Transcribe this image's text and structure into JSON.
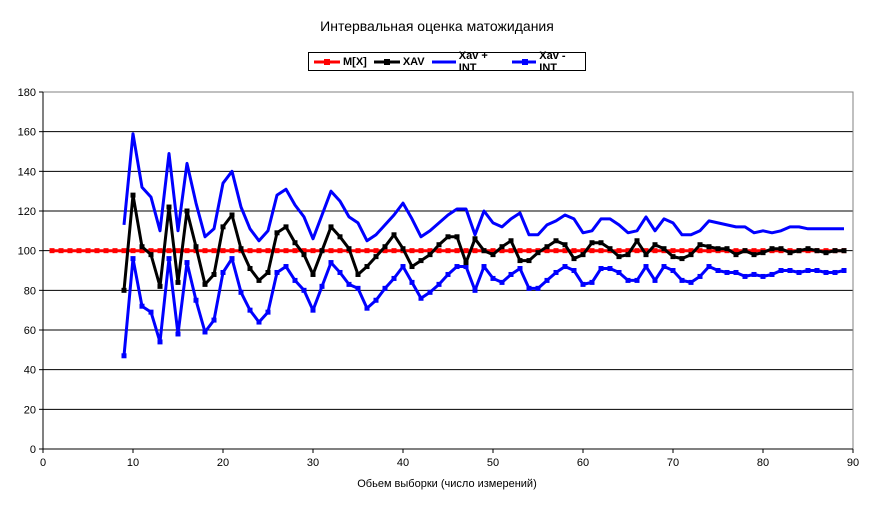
{
  "chart_data": {
    "type": "line",
    "title": "Интервальная оценка матожидания",
    "xlabel": "Обьем выборки (число измерений)",
    "ylabel": "",
    "xlim": [
      0,
      90
    ],
    "ylim": [
      0,
      180
    ],
    "x_ticks": [
      0,
      10,
      20,
      30,
      40,
      50,
      60,
      70,
      80,
      90
    ],
    "y_ticks": [
      0,
      20,
      40,
      60,
      80,
      100,
      120,
      140,
      160,
      180
    ],
    "grid": "horizontal",
    "legend_position": "top-center",
    "series": [
      {
        "name": "M[X]",
        "color": "#ff0000",
        "marker": "square",
        "x": [
          1,
          89
        ],
        "values": [
          100,
          100
        ],
        "constant": true
      },
      {
        "name": "XAV",
        "color": "#000000",
        "marker": "square",
        "x": [
          9,
          10,
          11,
          12,
          13,
          14,
          15,
          16,
          17,
          18,
          19,
          20,
          21,
          22,
          23,
          24,
          25,
          26,
          27,
          28,
          29,
          30,
          31,
          32,
          33,
          34,
          35,
          36,
          37,
          38,
          39,
          40,
          41,
          42,
          43,
          44,
          45,
          46,
          47,
          48,
          49,
          50,
          51,
          52,
          53,
          54,
          55,
          56,
          57,
          58,
          59,
          60,
          61,
          62,
          63,
          64,
          65,
          66,
          67,
          68,
          69,
          70,
          71,
          72,
          73,
          74,
          75,
          76,
          77,
          78,
          79,
          80,
          81,
          82,
          83,
          84,
          85,
          86,
          87,
          88,
          89
        ],
        "values": [
          80,
          128,
          102,
          98,
          82,
          122,
          84,
          120,
          102,
          83,
          88,
          112,
          118,
          101,
          91,
          85,
          89,
          109,
          112,
          104,
          98,
          88,
          100,
          112,
          107,
          101,
          88,
          92,
          97,
          102,
          108,
          101,
          92,
          95,
          98,
          103,
          107,
          107,
          94,
          106,
          100,
          98,
          102,
          105,
          95,
          95,
          99,
          102,
          105,
          103,
          96,
          98,
          104,
          104,
          101,
          97,
          98,
          105,
          98,
          103,
          101,
          97,
          96,
          98,
          103,
          102,
          101,
          101,
          98,
          100,
          98,
          99,
          101,
          101,
          99,
          100,
          101,
          100,
          99,
          100,
          100
        ]
      },
      {
        "name": "Xav + INT",
        "color": "#0000ff",
        "marker": "none",
        "x": [
          9,
          10,
          11,
          12,
          13,
          14,
          15,
          16,
          17,
          18,
          19,
          20,
          21,
          22,
          23,
          24,
          25,
          26,
          27,
          28,
          29,
          30,
          31,
          32,
          33,
          34,
          35,
          36,
          37,
          38,
          39,
          40,
          41,
          42,
          43,
          44,
          45,
          46,
          47,
          48,
          49,
          50,
          51,
          52,
          53,
          54,
          55,
          56,
          57,
          58,
          59,
          60,
          61,
          62,
          63,
          64,
          65,
          66,
          67,
          68,
          69,
          70,
          71,
          72,
          73,
          74,
          75,
          76,
          77,
          78,
          79,
          80,
          81,
          82,
          83,
          84,
          85,
          86,
          87,
          88,
          89
        ],
        "values": [
          113,
          159,
          132,
          127,
          110,
          149,
          110,
          144,
          124,
          107,
          111,
          134,
          140,
          122,
          111,
          105,
          110,
          128,
          131,
          123,
          117,
          106,
          118,
          130,
          125,
          117,
          114,
          105,
          108,
          113,
          118,
          124,
          116,
          107,
          110,
          114,
          118,
          121,
          121,
          108,
          120,
          114,
          112,
          116,
          119,
          108,
          108,
          113,
          115,
          118,
          116,
          109,
          110,
          116,
          116,
          113,
          109,
          110,
          117,
          110,
          116,
          114,
          108,
          108,
          110,
          115,
          114,
          113,
          112,
          112,
          109,
          110,
          109,
          110,
          112,
          112,
          111,
          111,
          111,
          111,
          111
        ]
      },
      {
        "name": "Xav - INT",
        "color": "#0000ff",
        "marker": "square",
        "x": [
          9,
          10,
          11,
          12,
          13,
          14,
          15,
          16,
          17,
          18,
          19,
          20,
          21,
          22,
          23,
          24,
          25,
          26,
          27,
          28,
          29,
          30,
          31,
          32,
          33,
          34,
          35,
          36,
          37,
          38,
          39,
          40,
          41,
          42,
          43,
          44,
          45,
          46,
          47,
          48,
          49,
          50,
          51,
          52,
          53,
          54,
          55,
          56,
          57,
          58,
          59,
          60,
          61,
          62,
          63,
          64,
          65,
          66,
          67,
          68,
          69,
          70,
          71,
          72,
          73,
          74,
          75,
          76,
          77,
          78,
          79,
          80,
          81,
          82,
          83,
          84,
          85,
          86,
          87,
          88,
          89
        ],
        "values": [
          47,
          96,
          72,
          69,
          54,
          96,
          58,
          94,
          75,
          59,
          65,
          89,
          96,
          79,
          70,
          64,
          69,
          89,
          92,
          85,
          80,
          70,
          82,
          94,
          89,
          83,
          81,
          71,
          75,
          81,
          86,
          92,
          84,
          76,
          79,
          83,
          88,
          92,
          92,
          80,
          92,
          86,
          84,
          88,
          91,
          81,
          81,
          85,
          89,
          92,
          90,
          83,
          84,
          91,
          91,
          89,
          85,
          85,
          92,
          85,
          92,
          90,
          85,
          84,
          87,
          92,
          90,
          89,
          89,
          87,
          88,
          87,
          88,
          90,
          90,
          89,
          90,
          90,
          89,
          89,
          90
        ]
      }
    ]
  }
}
